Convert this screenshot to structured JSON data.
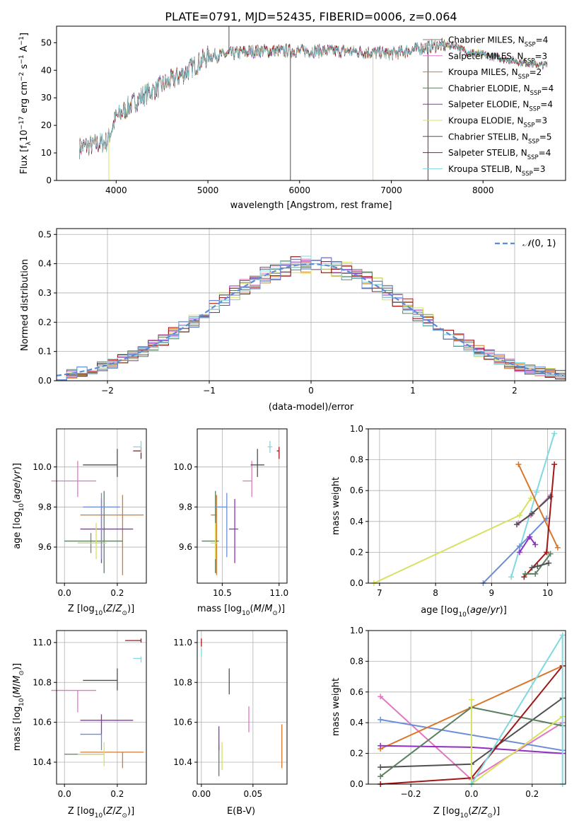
{
  "title": "PLATE=0791, MJD=52435, FIBERID=0006, z=0.064",
  "colors": {
    "CM": "#7f7f7f",
    "SM": "#e377c2",
    "KM": "#d9772a",
    "CE": "#5a8060",
    "SE": "#9030c0",
    "KE": "#d8e060",
    "CS": "#505050",
    "SS": "#a01818",
    "KS": "#80d8e0",
    "normal_curve": "#5b8cd8",
    "extra_blue": "#6a8fd8"
  },
  "chart_data": [
    {
      "id": "spectrum",
      "type": "line",
      "xlabel": "wavelength [Angstrom, rest frame]",
      "ylabel": "Flux [f_λ10^-17 erg cm^-2 s^-1 A^-1]",
      "xlim": [
        3350,
        8900
      ],
      "ylim": [
        0,
        56
      ],
      "xticks": [
        4000,
        5000,
        6000,
        7000,
        8000
      ],
      "yticks": [
        0,
        10,
        20,
        30,
        40,
        50
      ],
      "legend_position": "top-right",
      "legend": [
        {
          "key": "CM",
          "label": "Chabrier MILES, N",
          "sub": "SSP",
          "suffix": "=4"
        },
        {
          "key": "SM",
          "label": "Salpeter MILES, N",
          "sub": "SSP",
          "suffix": "=3"
        },
        {
          "key": "KM",
          "label": "Kroupa MILES, N",
          "sub": "SSP",
          "suffix": "=2"
        },
        {
          "key": "CE",
          "label": "Chabrier ELODIE, N",
          "sub": "SSP",
          "suffix": "=4"
        },
        {
          "key": "SE",
          "label": "Salpeter ELODIE, N",
          "sub": "SSP",
          "suffix": "=4"
        },
        {
          "key": "KE",
          "label": "Kroupa ELODIE, N",
          "sub": "SSP",
          "suffix": "=3"
        },
        {
          "key": "CS",
          "label": "Chabrier STELIB, N",
          "sub": "SSP",
          "suffix": "=5"
        },
        {
          "key": "SS",
          "label": "Salpeter STELIB, N",
          "sub": "SSP",
          "suffix": "=4"
        },
        {
          "key": "KS",
          "label": "Kroupa STELIB, N",
          "sub": "SSP",
          "suffix": "=3"
        }
      ],
      "continuum_points": [
        [
          3600,
          12
        ],
        [
          3900,
          14
        ],
        [
          4000,
          23
        ],
        [
          4300,
          31
        ],
        [
          4700,
          38
        ],
        [
          5000,
          45
        ],
        [
          5500,
          47
        ],
        [
          6000,
          47
        ],
        [
          6500,
          47
        ],
        [
          7000,
          46
        ],
        [
          7500,
          49
        ],
        [
          7700,
          49
        ],
        [
          7800,
          47
        ],
        [
          8100,
          45
        ],
        [
          8400,
          43
        ],
        [
          8600,
          42
        ],
        [
          8700,
          42
        ]
      ],
      "spikes": [
        [
          3920,
          "KE",
          -1
        ],
        [
          5230,
          "CS",
          1
        ],
        [
          5900,
          "CS",
          -1
        ],
        [
          6800,
          "KE",
          -1
        ],
        [
          7400,
          "SS",
          -1
        ]
      ]
    },
    {
      "id": "residuals",
      "type": "histogram",
      "xlabel": "(data-model)/error",
      "ylabel": "Normed distribution",
      "xlim": [
        -2.5,
        2.5
      ],
      "ylim": [
        0,
        0.52
      ],
      "xticks": [
        -2,
        -1,
        0,
        1,
        2
      ],
      "yticks": [
        0.0,
        0.1,
        0.2,
        0.3,
        0.4,
        0.5
      ],
      "grid": true,
      "legend_label": "N(0,1)",
      "legend_position": "top-right",
      "bin_width": 0.1
    },
    {
      "id": "age_vs_Z",
      "type": "errorbar",
      "xlabel": "Z [log10(Z/Z⊙)]",
      "ylabel": "age [log10(age/yr)]",
      "xlim": [
        -0.03,
        0.31
      ],
      "ylim": [
        9.42,
        10.19
      ],
      "xticks": [
        0.0,
        0.2
      ],
      "yticks": [
        9.6,
        9.8,
        10.0
      ],
      "points": [
        {
          "key": "CM",
          "x": 0.1,
          "y": 9.62,
          "xerr": [
            0.05,
            0.05
          ],
          "yerr": [
            0.05,
            0.05
          ]
        },
        {
          "key": "SM",
          "x": 0.05,
          "y": 9.93,
          "xerr": [
            0.1,
            0.07
          ],
          "yerr": [
            0.08,
            0.1
          ]
        },
        {
          "key": "KM",
          "x": 0.22,
          "y": 9.76,
          "xerr": [
            0.16,
            0.08
          ],
          "yerr": [
            0.3,
            0.1
          ]
        },
        {
          "key": "CE",
          "x": 0.15,
          "y": 9.63,
          "xerr": [
            0.15,
            0.07
          ],
          "yerr": [
            0.16,
            0.25
          ]
        },
        {
          "key": "SE",
          "x": 0.14,
          "y": 9.69,
          "xerr": [
            0.08,
            0.12
          ],
          "yerr": [
            0.17,
            0.15
          ]
        },
        {
          "key": "KE",
          "x": 0.12,
          "y": 9.62,
          "xerr": [
            0.07,
            0.04
          ],
          "yerr": [
            0.08,
            0.1
          ]
        },
        {
          "key": "CS",
          "x": 0.2,
          "y": 10.01,
          "xerr": [
            0.13,
            0.0
          ],
          "yerr": [
            0.06,
            0.08
          ]
        },
        {
          "key": "SS",
          "x": 0.29,
          "y": 10.08,
          "xerr": [
            0.03,
            0.0
          ],
          "yerr": [
            0.04,
            0.02
          ]
        },
        {
          "key": "KS",
          "x": 0.29,
          "y": 10.1,
          "xerr": [
            0.03,
            0.0
          ],
          "yerr": [
            0.03,
            0.03
          ]
        },
        {
          "key": "extra_blue",
          "x": 0.14,
          "y": 9.8,
          "xerr": [
            0.07,
            0.07
          ],
          "yerr": [
            0.26,
            0.07
          ]
        }
      ]
    },
    {
      "id": "age_vs_mass",
      "type": "errorbar",
      "xlabel": "mass [log10(M/M⊙)]",
      "ylabel": "",
      "xlim": [
        10.28,
        11.07
      ],
      "ylim": [
        9.42,
        10.19
      ],
      "xticks": [
        10.5,
        11.0
      ],
      "yticks": [
        9.6,
        9.8,
        10.0
      ],
      "points": [
        {
          "key": "SM",
          "x": 10.76,
          "y": 9.93,
          "xerr": [
            0.08,
            0.0
          ],
          "yerr": [
            0.08,
            0.1
          ]
        },
        {
          "key": "KM",
          "x": 10.45,
          "y": 9.76,
          "xerr": [
            0.05,
            0.0
          ],
          "yerr": [
            0.3,
            0.1
          ]
        },
        {
          "key": "CE",
          "x": 10.44,
          "y": 9.63,
          "xerr": [
            0.12,
            0.03
          ],
          "yerr": [
            0.16,
            0.25
          ]
        },
        {
          "key": "SE",
          "x": 10.61,
          "y": 9.69,
          "xerr": [
            0.05,
            0.03
          ],
          "yerr": [
            0.17,
            0.15
          ]
        },
        {
          "key": "KE",
          "x": 10.44,
          "y": 9.62,
          "xerr": [
            0.04,
            0.02
          ],
          "yerr": [
            0.08,
            0.1
          ]
        },
        {
          "key": "CS",
          "x": 10.81,
          "y": 10.01,
          "xerr": [
            0.06,
            0.06
          ],
          "yerr": [
            0.06,
            0.08
          ]
        },
        {
          "key": "SS",
          "x": 11.0,
          "y": 10.08,
          "xerr": [
            0.02,
            0.0
          ],
          "yerr": [
            0.04,
            0.02
          ]
        },
        {
          "key": "KS",
          "x": 10.92,
          "y": 10.1,
          "xerr": [
            0.02,
            0.02
          ],
          "yerr": [
            0.03,
            0.03
          ]
        },
        {
          "key": "extra_blue",
          "x": 10.54,
          "y": 9.8,
          "xerr": [
            0.1,
            0.0
          ],
          "yerr": [
            0.25,
            0.07
          ]
        }
      ]
    },
    {
      "id": "mass_weight_vs_age",
      "type": "line",
      "xlabel": "age [log10(age/yr)]",
      "ylabel": "mass weight",
      "xlim": [
        6.8,
        10.32
      ],
      "ylim": [
        0.0,
        1.0
      ],
      "xticks": [
        7,
        8,
        9,
        10
      ],
      "yticks": [
        0.0,
        0.2,
        0.4,
        0.6,
        0.8,
        1.0
      ],
      "grid": true,
      "series": [
        {
          "key": "KE",
          "x": [
            6.9,
            9.5,
            9.7
          ],
          "y": [
            0.0,
            0.44,
            0.55
          ]
        },
        {
          "key": "KS",
          "x": [
            9.35,
            9.8,
            10.12
          ],
          "y": [
            0.04,
            0.59,
            0.97
          ]
        },
        {
          "key": "extra_blue",
          "x": [
            8.85,
            9.5,
            9.98
          ],
          "y": [
            0.0,
            0.24,
            0.42
          ]
        },
        {
          "key": "SM",
          "x": [
            9.48,
            9.7,
            10.05
          ],
          "y": [
            0.39,
            0.44,
            0.57
          ]
        },
        {
          "key": "CS",
          "x": [
            9.45,
            9.72,
            10.05
          ],
          "y": [
            0.38,
            0.45,
            0.56
          ]
        },
        {
          "key": "KM",
          "x": [
            9.48,
            10.18
          ],
          "y": [
            0.77,
            0.23
          ]
        },
        {
          "key": "SS",
          "x": [
            9.58,
            9.98,
            10.12
          ],
          "y": [
            0.04,
            0.2,
            0.77
          ]
        },
        {
          "key": "CE",
          "x": [
            9.6,
            9.78,
            10.05
          ],
          "y": [
            0.06,
            0.06,
            0.19
          ]
        },
        {
          "key": "SE",
          "x": [
            9.5,
            9.68,
            9.78
          ],
          "y": [
            0.2,
            0.3,
            0.25
          ]
        },
        {
          "key": "CS",
          "x": [
            9.72,
            9.82,
            10.02
          ],
          "y": [
            0.1,
            0.11,
            0.13
          ]
        }
      ]
    },
    {
      "id": "mass_vs_Z",
      "type": "errorbar",
      "xlabel": "Z [log10(Z/Z⊙)]",
      "ylabel": "mass [log10(M/M⊙)]",
      "xlim": [
        -0.03,
        0.31
      ],
      "ylim": [
        10.29,
        11.06
      ],
      "xticks": [
        0.0,
        0.2
      ],
      "yticks": [
        10.4,
        10.6,
        10.8,
        11.0
      ],
      "points": [
        {
          "key": "SM",
          "x": 0.05,
          "y": 10.76,
          "xerr": [
            0.1,
            0.07
          ],
          "yerr": [
            0.11,
            0.0
          ]
        },
        {
          "key": "KM",
          "x": 0.22,
          "y": 10.45,
          "xerr": [
            0.16,
            0.08
          ],
          "yerr": [
            0.08,
            0.0
          ]
        },
        {
          "key": "CE",
          "x": 0.1,
          "y": 10.44,
          "xerr": [
            0.1,
            0.05
          ],
          "yerr": [
            0.0,
            0.0
          ]
        },
        {
          "key": "SE",
          "x": 0.14,
          "y": 10.61,
          "xerr": [
            0.08,
            0.12
          ],
          "yerr": [
            0.07,
            0.03
          ]
        },
        {
          "key": "KE",
          "x": 0.15,
          "y": 10.44,
          "xerr": [
            0.1,
            0.0
          ],
          "yerr": [
            0.06,
            0.06
          ]
        },
        {
          "key": "CS",
          "x": 0.2,
          "y": 10.81,
          "xerr": [
            0.13,
            0.0
          ],
          "yerr": [
            0.05,
            0.06
          ]
        },
        {
          "key": "SS",
          "x": 0.29,
          "y": 11.01,
          "xerr": [
            0.06,
            0.0
          ],
          "yerr": [
            0.01,
            0.01
          ]
        },
        {
          "key": "KS",
          "x": 0.29,
          "y": 10.92,
          "xerr": [
            0.03,
            0.0
          ],
          "yerr": [
            0.02,
            0.01
          ]
        },
        {
          "key": "extra_blue",
          "x": 0.14,
          "y": 10.54,
          "xerr": [
            0.08,
            0.0
          ],
          "yerr": [
            0.08,
            0.0
          ]
        }
      ]
    },
    {
      "id": "Ebv",
      "type": "errorbar",
      "xlabel": "E(B-V)",
      "ylabel": "",
      "xlim": [
        -0.004,
        0.083
      ],
      "ylim": [
        10.29,
        11.06
      ],
      "xticks": [
        0.0,
        0.05
      ],
      "yticks": [
        10.4,
        10.6,
        10.8,
        11.0
      ],
      "points": [
        {
          "key": "SM",
          "x": 0.046,
          "y": 10.6,
          "xerr": [
            0,
            0
          ],
          "yerr": [
            0.05,
            0.08
          ]
        },
        {
          "key": "KM",
          "x": 0.078,
          "y": 10.48,
          "xerr": [
            0,
            0
          ],
          "yerr": [
            0.11,
            0.11
          ]
        },
        {
          "key": "CE",
          "x": 0.017,
          "y": 10.41,
          "xerr": [
            0,
            0
          ],
          "yerr": [
            0.08,
            0.08
          ]
        },
        {
          "key": "SE",
          "x": 0.017,
          "y": 10.52,
          "xerr": [
            0,
            0
          ],
          "yerr": [
            0.06,
            0.06
          ]
        },
        {
          "key": "KE",
          "x": 0.02,
          "y": 10.42,
          "xerr": [
            0,
            0
          ],
          "yerr": [
            0.06,
            0.08
          ]
        },
        {
          "key": "CS",
          "x": 0.027,
          "y": 10.8,
          "xerr": [
            0,
            0
          ],
          "yerr": [
            0.06,
            0.07
          ]
        },
        {
          "key": "SS",
          "x": 0.0,
          "y": 11.0,
          "xerr": [
            0,
            0
          ],
          "yerr": [
            0.02,
            0.02
          ]
        },
        {
          "key": "KS",
          "x": 0.0,
          "y": 10.95,
          "xerr": [
            0,
            0
          ],
          "yerr": [
            0.02,
            0.02
          ]
        }
      ]
    },
    {
      "id": "mass_weight_vs_Z",
      "type": "line",
      "xlabel": "Z [log10(Z/Z⊙)]",
      "ylabel": "mass weight",
      "xlim": [
        -0.34,
        0.31
      ],
      "ylim": [
        0.0,
        1.0
      ],
      "xticks": [
        -0.2,
        0.0,
        0.2
      ],
      "yticks": [
        0.0,
        0.2,
        0.4,
        0.6,
        0.8,
        1.0
      ],
      "grid": true,
      "series": [
        {
          "key": "SM",
          "x": [
            -0.3,
            0.0,
            0.3
          ],
          "y": [
            0.57,
            0.03,
            0.4
          ]
        },
        {
          "key": "extra_blue",
          "x": [
            -0.3,
            0.3
          ],
          "y": [
            0.42,
            0.22
          ]
        },
        {
          "key": "KM",
          "x": [
            -0.3,
            0.3
          ],
          "y": [
            0.23,
            0.77
          ]
        },
        {
          "key": "SE",
          "x": [
            -0.3,
            0.0,
            0.3
          ],
          "y": [
            0.25,
            0.24,
            0.2
          ]
        },
        {
          "key": "CS",
          "x": [
            -0.3,
            0.0,
            0.3
          ],
          "y": [
            0.11,
            0.13,
            0.56
          ]
        },
        {
          "key": "CE",
          "x": [
            -0.3,
            0.0,
            0.3
          ],
          "y": [
            0.05,
            0.5,
            0.38
          ]
        },
        {
          "key": "SS",
          "x": [
            -0.3,
            0.0,
            0.3
          ],
          "y": [
            0.0,
            0.04,
            0.77
          ]
        },
        {
          "key": "KE",
          "x": [
            0.0,
            0.0,
            0.3
          ],
          "y": [
            0.55,
            0.0,
            0.44
          ]
        },
        {
          "key": "KS",
          "x": [
            0.0,
            0.3,
            0.3
          ],
          "y": [
            0.0,
            0.97,
            0.0
          ]
        }
      ]
    }
  ]
}
